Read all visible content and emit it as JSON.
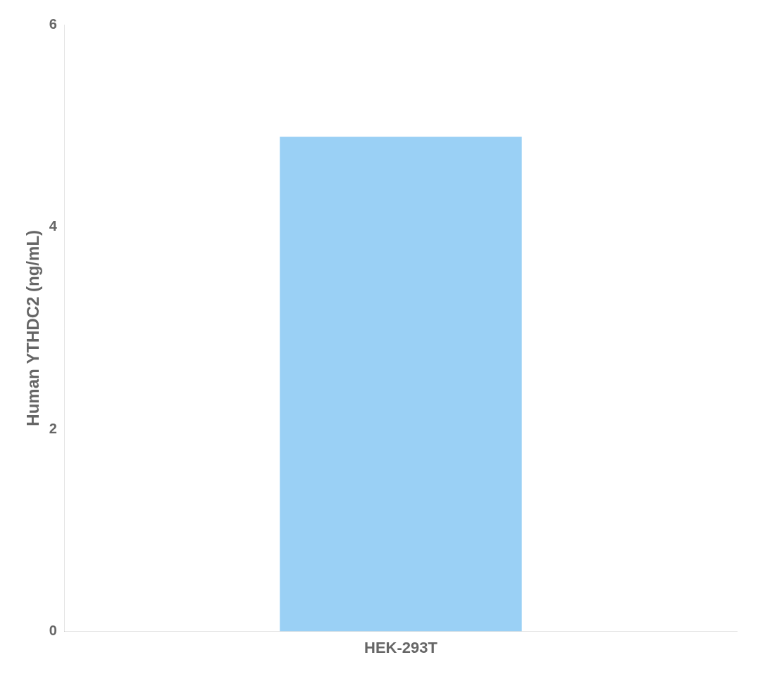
{
  "chart_data": {
    "type": "bar",
    "categories": [
      "HEK-293T"
    ],
    "values": [
      4.89
    ],
    "ylabel": "Human YTHDC2 (ng/mL)",
    "ylim": [
      0,
      6
    ],
    "yticks": [
      0,
      2,
      4,
      6
    ],
    "grid": false
  }
}
